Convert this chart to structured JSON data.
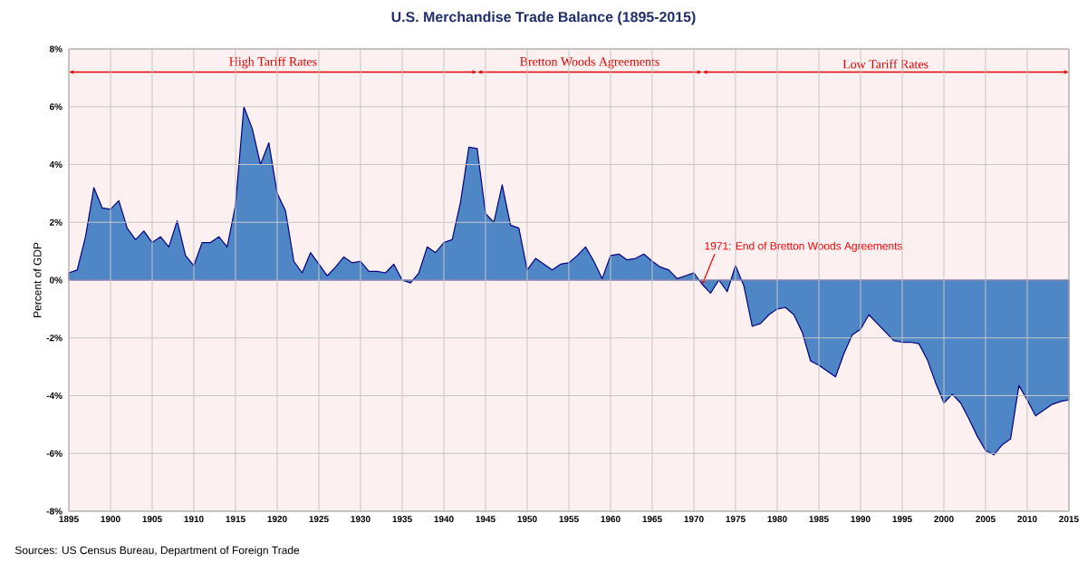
{
  "chart_data": {
    "type": "area",
    "title": "U.S. Merchandise Trade Balance (1895-2015)",
    "ylabel": "Percent of GDP",
    "x": [
      1895,
      1896,
      1897,
      1898,
      1899,
      1900,
      1901,
      1902,
      1903,
      1904,
      1905,
      1906,
      1907,
      1908,
      1909,
      1910,
      1911,
      1912,
      1913,
      1914,
      1915,
      1916,
      1917,
      1918,
      1919,
      1920,
      1921,
      1922,
      1923,
      1924,
      1925,
      1926,
      1927,
      1928,
      1929,
      1930,
      1931,
      1932,
      1933,
      1934,
      1935,
      1936,
      1937,
      1938,
      1939,
      1940,
      1941,
      1942,
      1943,
      1944,
      1945,
      1946,
      1947,
      1948,
      1949,
      1950,
      1951,
      1952,
      1953,
      1954,
      1955,
      1956,
      1957,
      1958,
      1959,
      1960,
      1961,
      1962,
      1963,
      1964,
      1965,
      1966,
      1967,
      1968,
      1969,
      1970,
      1971,
      1972,
      1973,
      1974,
      1975,
      1976,
      1977,
      1978,
      1979,
      1980,
      1981,
      1982,
      1983,
      1984,
      1985,
      1986,
      1987,
      1988,
      1989,
      1990,
      1991,
      1992,
      1993,
      1994,
      1995,
      1996,
      1997,
      1998,
      1999,
      2000,
      2001,
      2002,
      2003,
      2004,
      2005,
      2006,
      2007,
      2008,
      2009,
      2010,
      2011,
      2012,
      2013,
      2014,
      2015
    ],
    "series": [
      {
        "color": "#4f86c6",
        "values": [
          0.25,
          0.35,
          1.5,
          3.2,
          2.5,
          2.45,
          2.75,
          1.8,
          1.4,
          1.7,
          1.3,
          1.5,
          1.15,
          2.05,
          0.85,
          0.5,
          1.3,
          1.3,
          1.5,
          1.15,
          2.6,
          6.0,
          5.25,
          4.0,
          4.75,
          3.0,
          2.4,
          0.65,
          0.25,
          0.95,
          0.55,
          0.15,
          0.45,
          0.8,
          0.6,
          0.65,
          0.3,
          0.3,
          0.25,
          0.55,
          0,
          -0.1,
          0.25,
          1.15,
          0.95,
          1.3,
          1.4,
          2.7,
          4.6,
          4.55,
          2.3,
          2.0,
          3.3,
          1.9,
          1.8,
          0.35,
          0.75,
          0.55,
          0.35,
          0.55,
          0.6,
          0.85,
          1.15,
          0.65,
          0.05,
          0.85,
          0.9,
          0.7,
          0.75,
          0.9,
          0.65,
          0.45,
          0.35,
          0.05,
          0.15,
          0.25,
          -0.15,
          -0.45,
          0,
          -0.4,
          0.5,
          -0.2,
          -1.6,
          -1.5,
          -1.2,
          -1.0,
          -0.95,
          -1.2,
          -1.8,
          -2.8,
          -2.95,
          -3.15,
          -3.35,
          -2.55,
          -1.9,
          -1.7,
          -1.2,
          -1.5,
          -1.8,
          -2.1,
          -2.15,
          -2.15,
          -2.2,
          -2.75,
          -3.55,
          -4.25,
          -3.95,
          -4.25,
          -4.8,
          -5.4,
          -5.9,
          -6.05,
          -5.7,
          -5.5,
          -3.65,
          -4.15,
          -4.7,
          -4.5,
          -4.3,
          -4.2,
          -4.15
        ]
      }
    ],
    "xlim": [
      1895,
      2015
    ],
    "xticks": [
      1895,
      1900,
      1905,
      1910,
      1915,
      1920,
      1925,
      1930,
      1935,
      1940,
      1945,
      1950,
      1955,
      1960,
      1965,
      1970,
      1975,
      1980,
      1985,
      1990,
      1995,
      2000,
      2005,
      2010,
      2015
    ],
    "ylim": [
      -8,
      8
    ],
    "yticks": [
      {
        "value": -8,
        "label": "-8%"
      },
      {
        "value": -6,
        "label": "-6%"
      },
      {
        "value": -4,
        "label": "-4%"
      },
      {
        "value": -2,
        "label": "-2%"
      },
      {
        "value": 0,
        "label": "0%"
      },
      {
        "value": 2,
        "label": "2%"
      },
      {
        "value": 4,
        "label": "4%"
      },
      {
        "value": 6,
        "label": "6%"
      },
      {
        "value": 8,
        "label": "8%"
      }
    ],
    "grid": true,
    "bands": [
      {
        "axis": "x",
        "from": 1895,
        "to": 1944,
        "label": "High Tariff Rates",
        "color": "#fdf0f0"
      },
      {
        "axis": "x",
        "from": 1944,
        "to": 1971,
        "label": "Bretton Woods Agreements",
        "color": "#fdf0f0"
      },
      {
        "axis": "x",
        "from": 1971,
        "to": 2015,
        "label": "Low Tariff Rates",
        "color": "#fdf0f0"
      }
    ],
    "annotations": [
      {
        "text": "1971: End of Bretton Woods Agreements",
        "x": 1971,
        "y": -0.15
      },
      "Sources: US Census Bureau, Department of Foreign Trade"
    ]
  }
}
